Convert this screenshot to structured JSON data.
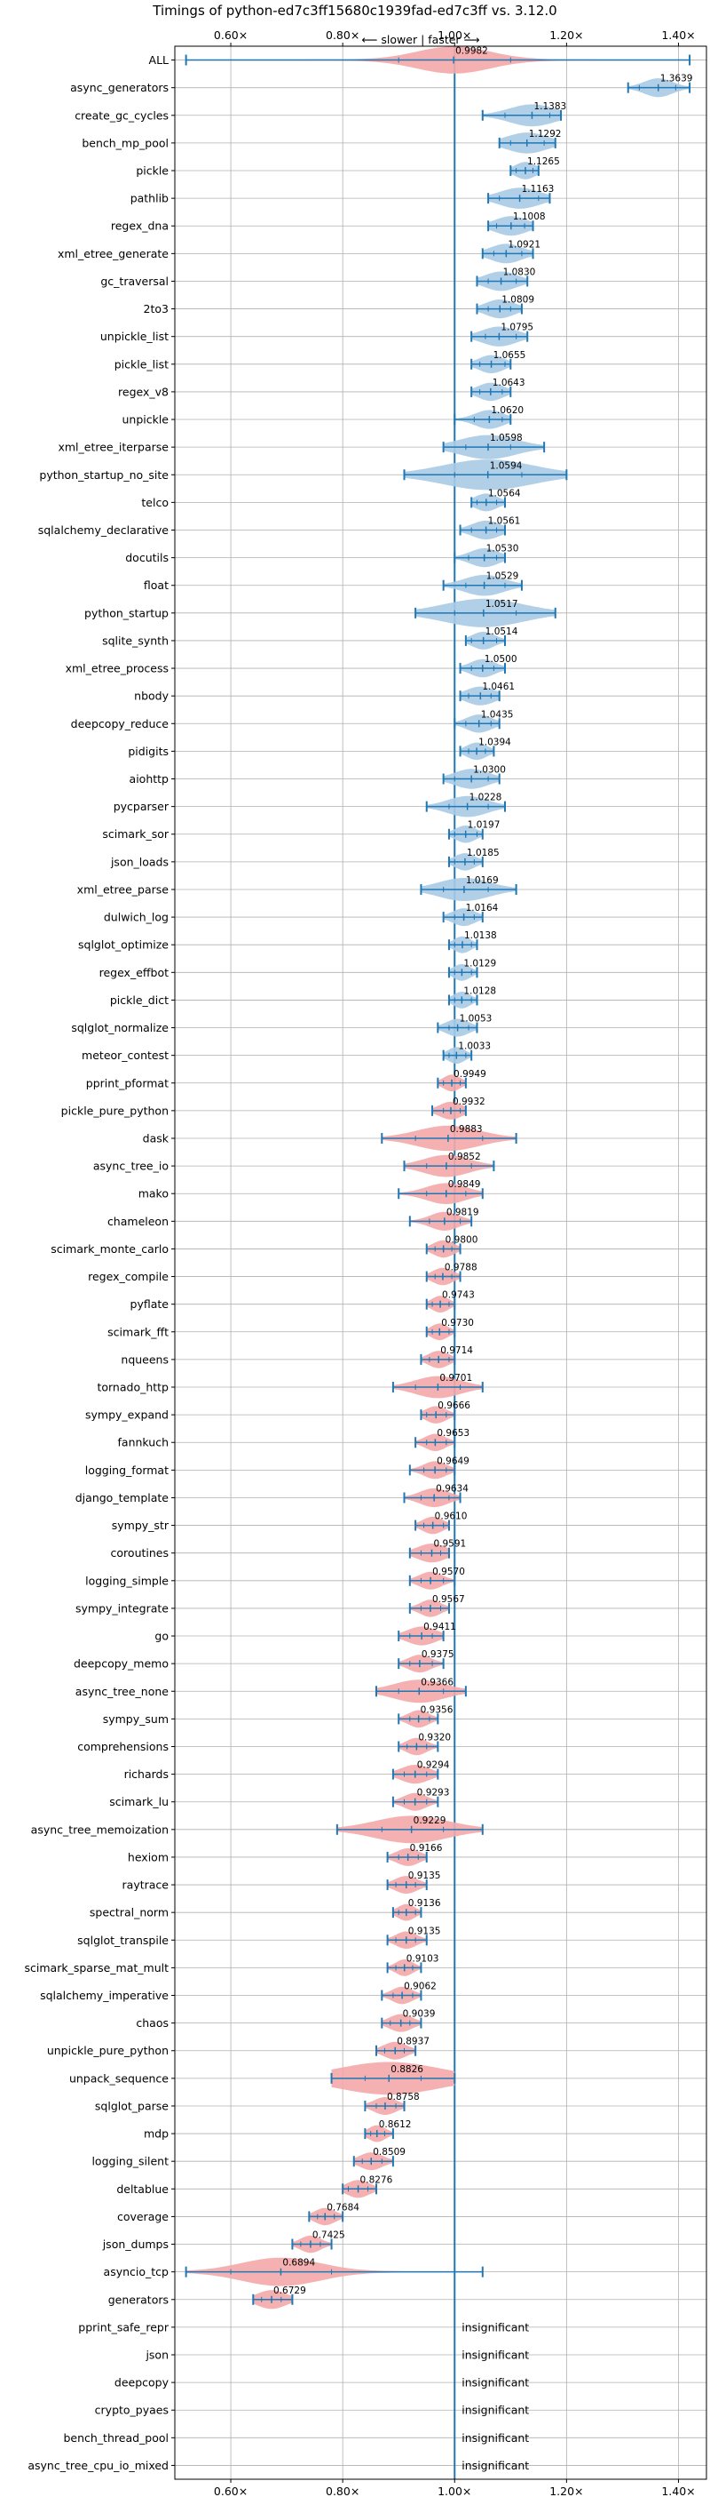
{
  "chart_data": {
    "type": "violin",
    "title": "Timings of python-ed7c3ff15680c1939fad-ed7c3ff vs. 3.12.0",
    "direction_label": "⟵ slower | faster ⟶",
    "xlim": [
      0.5,
      1.45
    ],
    "x_ticks": [
      0.6,
      0.8,
      1.0,
      1.2,
      1.4
    ],
    "x_tick_labels": [
      "0.60×",
      "0.80×",
      "1.00×",
      "1.20×",
      "1.40×"
    ],
    "reference_line": 1.0,
    "colors": {
      "faster": "#a8cbe6",
      "slower": "#f4a8a8",
      "line": "#1f77b4",
      "grid": "#b0b0b0"
    },
    "insignificant_label": "insignificant",
    "benchmarks": [
      {
        "name": "ALL",
        "mean": 0.9982,
        "lo": 0.52,
        "hi": 1.42,
        "wlo": 0.9,
        "whi": 1.1,
        "spread": 0.065,
        "sig": true
      },
      {
        "name": "async_generators",
        "mean": 1.3639,
        "lo": 1.31,
        "hi": 1.42,
        "wlo": 1.33,
        "whi": 1.395,
        "spread": 0.025,
        "sig": true
      },
      {
        "name": "create_gc_cycles",
        "mean": 1.1383,
        "lo": 1.05,
        "hi": 1.19,
        "wlo": 1.09,
        "whi": 1.17,
        "spread": 0.04,
        "sig": true
      },
      {
        "name": "bench_mp_pool",
        "mean": 1.1292,
        "lo": 1.08,
        "hi": 1.18,
        "wlo": 1.1,
        "whi": 1.16,
        "spread": 0.035,
        "sig": true
      },
      {
        "name": "pickle",
        "mean": 1.1265,
        "lo": 1.1,
        "hi": 1.15,
        "wlo": 1.11,
        "whi": 1.14,
        "spread": 0.018,
        "sig": true
      },
      {
        "name": "pathlib",
        "mean": 1.1163,
        "lo": 1.06,
        "hi": 1.17,
        "wlo": 1.08,
        "whi": 1.15,
        "spread": 0.035,
        "sig": true
      },
      {
        "name": "regex_dna",
        "mean": 1.1008,
        "lo": 1.06,
        "hi": 1.14,
        "wlo": 1.075,
        "whi": 1.125,
        "spread": 0.028,
        "sig": true
      },
      {
        "name": "xml_etree_generate",
        "mean": 1.0921,
        "lo": 1.05,
        "hi": 1.14,
        "wlo": 1.07,
        "whi": 1.12,
        "spread": 0.028,
        "sig": true
      },
      {
        "name": "gc_traversal",
        "mean": 1.083,
        "lo": 1.04,
        "hi": 1.13,
        "wlo": 1.06,
        "whi": 1.11,
        "spread": 0.028,
        "sig": true
      },
      {
        "name": "2to3",
        "mean": 1.0809,
        "lo": 1.04,
        "hi": 1.12,
        "wlo": 1.06,
        "whi": 1.1,
        "spread": 0.025,
        "sig": true
      },
      {
        "name": "unpickle_list",
        "mean": 1.0795,
        "lo": 1.03,
        "hi": 1.13,
        "wlo": 1.055,
        "whi": 1.11,
        "spread": 0.03,
        "sig": true
      },
      {
        "name": "pickle_list",
        "mean": 1.0655,
        "lo": 1.03,
        "hi": 1.1,
        "wlo": 1.045,
        "whi": 1.09,
        "spread": 0.022,
        "sig": true
      },
      {
        "name": "regex_v8",
        "mean": 1.0643,
        "lo": 1.03,
        "hi": 1.1,
        "wlo": 1.045,
        "whi": 1.085,
        "spread": 0.022,
        "sig": true
      },
      {
        "name": "unpickle",
        "mean": 1.062,
        "lo": 1.0,
        "hi": 1.1,
        "wlo": 1.035,
        "whi": 1.085,
        "spread": 0.025,
        "sig": true
      },
      {
        "name": "xml_etree_iterparse",
        "mean": 1.0598,
        "lo": 0.98,
        "hi": 1.16,
        "wlo": 1.02,
        "whi": 1.1,
        "spread": 0.05,
        "sig": true
      },
      {
        "name": "python_startup_no_site",
        "mean": 1.0594,
        "lo": 0.91,
        "hi": 1.2,
        "wlo": 1.0,
        "whi": 1.12,
        "spread": 0.08,
        "sig": true
      },
      {
        "name": "telco",
        "mean": 1.0564,
        "lo": 1.03,
        "hi": 1.09,
        "wlo": 1.04,
        "whi": 1.075,
        "spread": 0.02,
        "sig": true
      },
      {
        "name": "sqlalchemy_declarative",
        "mean": 1.0561,
        "lo": 1.01,
        "hi": 1.09,
        "wlo": 1.03,
        "whi": 1.075,
        "spread": 0.025,
        "sig": true
      },
      {
        "name": "docutils",
        "mean": 1.053,
        "lo": 1.0,
        "hi": 1.09,
        "wlo": 1.025,
        "whi": 1.075,
        "spread": 0.025,
        "sig": true
      },
      {
        "name": "float",
        "mean": 1.0529,
        "lo": 0.98,
        "hi": 1.12,
        "wlo": 1.02,
        "whi": 1.09,
        "spread": 0.035,
        "sig": true
      },
      {
        "name": "python_startup",
        "mean": 1.0517,
        "lo": 0.93,
        "hi": 1.18,
        "wlo": 1.0,
        "whi": 1.11,
        "spread": 0.07,
        "sig": true
      },
      {
        "name": "sqlite_synth",
        "mean": 1.0514,
        "lo": 1.02,
        "hi": 1.09,
        "wlo": 1.03,
        "whi": 1.075,
        "spread": 0.02,
        "sig": true
      },
      {
        "name": "xml_etree_process",
        "mean": 1.05,
        "lo": 1.01,
        "hi": 1.09,
        "wlo": 1.03,
        "whi": 1.07,
        "spread": 0.022,
        "sig": true
      },
      {
        "name": "nbody",
        "mean": 1.0461,
        "lo": 1.01,
        "hi": 1.08,
        "wlo": 1.025,
        "whi": 1.065,
        "spread": 0.025,
        "sig": true
      },
      {
        "name": "deepcopy_reduce",
        "mean": 1.0435,
        "lo": 1.0,
        "hi": 1.08,
        "wlo": 1.02,
        "whi": 1.065,
        "spread": 0.022,
        "sig": true
      },
      {
        "name": "pidigits",
        "mean": 1.0394,
        "lo": 1.01,
        "hi": 1.07,
        "wlo": 1.025,
        "whi": 1.055,
        "spread": 0.018,
        "sig": true
      },
      {
        "name": "aiohttp",
        "mean": 1.03,
        "lo": 0.98,
        "hi": 1.08,
        "wlo": 1.0,
        "whi": 1.06,
        "spread": 0.03,
        "sig": true
      },
      {
        "name": "pycparser",
        "mean": 1.0228,
        "lo": 0.95,
        "hi": 1.09,
        "wlo": 0.99,
        "whi": 1.06,
        "spread": 0.035,
        "sig": true
      },
      {
        "name": "scimark_sor",
        "mean": 1.0197,
        "lo": 0.99,
        "hi": 1.05,
        "wlo": 1.0,
        "whi": 1.04,
        "spread": 0.018,
        "sig": true
      },
      {
        "name": "json_loads",
        "mean": 1.0185,
        "lo": 0.99,
        "hi": 1.05,
        "wlo": 1.0,
        "whi": 1.035,
        "spread": 0.018,
        "sig": true
      },
      {
        "name": "xml_etree_parse",
        "mean": 1.0169,
        "lo": 0.94,
        "hi": 1.11,
        "wlo": 0.98,
        "whi": 1.06,
        "spread": 0.045,
        "sig": true
      },
      {
        "name": "dulwich_log",
        "mean": 1.0164,
        "lo": 0.98,
        "hi": 1.05,
        "wlo": 1.0,
        "whi": 1.035,
        "spread": 0.02,
        "sig": true
      },
      {
        "name": "sqlglot_optimize",
        "mean": 1.0138,
        "lo": 0.99,
        "hi": 1.04,
        "wlo": 1.0,
        "whi": 1.03,
        "spread": 0.015,
        "sig": true
      },
      {
        "name": "regex_effbot",
        "mean": 1.0129,
        "lo": 0.99,
        "hi": 1.04,
        "wlo": 1.0,
        "whi": 1.03,
        "spread": 0.015,
        "sig": true
      },
      {
        "name": "pickle_dict",
        "mean": 1.0128,
        "lo": 0.99,
        "hi": 1.04,
        "wlo": 1.0,
        "whi": 1.03,
        "spread": 0.015,
        "sig": true
      },
      {
        "name": "sqlglot_normalize",
        "mean": 1.0053,
        "lo": 0.97,
        "hi": 1.04,
        "wlo": 0.99,
        "whi": 1.025,
        "spread": 0.02,
        "sig": true
      },
      {
        "name": "meteor_contest",
        "mean": 1.0033,
        "lo": 0.98,
        "hi": 1.03,
        "wlo": 0.99,
        "whi": 1.02,
        "spread": 0.015,
        "sig": true
      },
      {
        "name": "pprint_pformat",
        "mean": 0.9949,
        "lo": 0.97,
        "hi": 1.02,
        "wlo": 0.98,
        "whi": 1.01,
        "spread": 0.015,
        "sig": true
      },
      {
        "name": "pickle_pure_python",
        "mean": 0.9932,
        "lo": 0.96,
        "hi": 1.02,
        "wlo": 0.98,
        "whi": 1.01,
        "spread": 0.02,
        "sig": true
      },
      {
        "name": "dask",
        "mean": 0.9883,
        "lo": 0.87,
        "hi": 1.11,
        "wlo": 0.93,
        "whi": 1.05,
        "spread": 0.055,
        "sig": true
      },
      {
        "name": "async_tree_io",
        "mean": 0.9852,
        "lo": 0.91,
        "hi": 1.07,
        "wlo": 0.95,
        "whi": 1.03,
        "spread": 0.04,
        "sig": true
      },
      {
        "name": "mako",
        "mean": 0.9849,
        "lo": 0.9,
        "hi": 1.05,
        "wlo": 0.95,
        "whi": 1.02,
        "spread": 0.035,
        "sig": true
      },
      {
        "name": "chameleon",
        "mean": 0.9819,
        "lo": 0.92,
        "hi": 1.03,
        "wlo": 0.955,
        "whi": 1.01,
        "spread": 0.025,
        "sig": true
      },
      {
        "name": "scimark_monte_carlo",
        "mean": 0.98,
        "lo": 0.95,
        "hi": 1.01,
        "wlo": 0.965,
        "whi": 0.995,
        "spread": 0.018,
        "sig": true
      },
      {
        "name": "regex_compile",
        "mean": 0.9788,
        "lo": 0.95,
        "hi": 1.01,
        "wlo": 0.965,
        "whi": 0.995,
        "spread": 0.018,
        "sig": true
      },
      {
        "name": "pyflate",
        "mean": 0.9743,
        "lo": 0.95,
        "hi": 1.0,
        "wlo": 0.96,
        "whi": 0.99,
        "spread": 0.015,
        "sig": true
      },
      {
        "name": "scimark_fft",
        "mean": 0.973,
        "lo": 0.95,
        "hi": 1.0,
        "wlo": 0.96,
        "whi": 0.99,
        "spread": 0.015,
        "sig": true
      },
      {
        "name": "nqueens",
        "mean": 0.9714,
        "lo": 0.94,
        "hi": 1.0,
        "wlo": 0.955,
        "whi": 0.99,
        "spread": 0.018,
        "sig": true
      },
      {
        "name": "tornado_http",
        "mean": 0.9701,
        "lo": 0.89,
        "hi": 1.05,
        "wlo": 0.93,
        "whi": 1.01,
        "spread": 0.04,
        "sig": true
      },
      {
        "name": "sympy_expand",
        "mean": 0.9666,
        "lo": 0.94,
        "hi": 1.0,
        "wlo": 0.95,
        "whi": 0.985,
        "spread": 0.018,
        "sig": true
      },
      {
        "name": "fannkuch",
        "mean": 0.9653,
        "lo": 0.93,
        "hi": 1.0,
        "wlo": 0.95,
        "whi": 0.985,
        "spread": 0.018,
        "sig": true
      },
      {
        "name": "logging_format",
        "mean": 0.9649,
        "lo": 0.92,
        "hi": 1.0,
        "wlo": 0.945,
        "whi": 0.985,
        "spread": 0.02,
        "sig": true
      },
      {
        "name": "django_template",
        "mean": 0.9634,
        "lo": 0.91,
        "hi": 1.01,
        "wlo": 0.94,
        "whi": 0.99,
        "spread": 0.025,
        "sig": true
      },
      {
        "name": "sympy_str",
        "mean": 0.961,
        "lo": 0.93,
        "hi": 0.99,
        "wlo": 0.945,
        "whi": 0.98,
        "spread": 0.018,
        "sig": true
      },
      {
        "name": "coroutines",
        "mean": 0.9591,
        "lo": 0.92,
        "hi": 0.99,
        "wlo": 0.94,
        "whi": 0.975,
        "spread": 0.025,
        "sig": true
      },
      {
        "name": "logging_simple",
        "mean": 0.957,
        "lo": 0.92,
        "hi": 1.0,
        "wlo": 0.94,
        "whi": 0.98,
        "spread": 0.02,
        "sig": true
      },
      {
        "name": "sympy_integrate",
        "mean": 0.9567,
        "lo": 0.92,
        "hi": 0.99,
        "wlo": 0.94,
        "whi": 0.975,
        "spread": 0.018,
        "sig": true
      },
      {
        "name": "go",
        "mean": 0.9411,
        "lo": 0.9,
        "hi": 0.98,
        "wlo": 0.92,
        "whi": 0.96,
        "spread": 0.025,
        "sig": true
      },
      {
        "name": "deepcopy_memo",
        "mean": 0.9375,
        "lo": 0.9,
        "hi": 0.98,
        "wlo": 0.92,
        "whi": 0.96,
        "spread": 0.02,
        "sig": true
      },
      {
        "name": "async_tree_none",
        "mean": 0.9366,
        "lo": 0.86,
        "hi": 1.02,
        "wlo": 0.9,
        "whi": 0.98,
        "spread": 0.045,
        "sig": true
      },
      {
        "name": "sympy_sum",
        "mean": 0.9356,
        "lo": 0.9,
        "hi": 0.97,
        "wlo": 0.92,
        "whi": 0.955,
        "spread": 0.018,
        "sig": true
      },
      {
        "name": "comprehensions",
        "mean": 0.932,
        "lo": 0.9,
        "hi": 0.97,
        "wlo": 0.915,
        "whi": 0.95,
        "spread": 0.018,
        "sig": true
      },
      {
        "name": "richards",
        "mean": 0.9294,
        "lo": 0.89,
        "hi": 0.97,
        "wlo": 0.91,
        "whi": 0.95,
        "spread": 0.025,
        "sig": true
      },
      {
        "name": "scimark_lu",
        "mean": 0.9293,
        "lo": 0.89,
        "hi": 0.97,
        "wlo": 0.91,
        "whi": 0.95,
        "spread": 0.02,
        "sig": true
      },
      {
        "name": "async_tree_memoization",
        "mean": 0.9229,
        "lo": 0.79,
        "hi": 1.05,
        "wlo": 0.87,
        "whi": 0.98,
        "spread": 0.065,
        "sig": true
      },
      {
        "name": "hexiom",
        "mean": 0.9166,
        "lo": 0.88,
        "hi": 0.95,
        "wlo": 0.9,
        "whi": 0.935,
        "spread": 0.02,
        "sig": true
      },
      {
        "name": "raytrace",
        "mean": 0.9135,
        "lo": 0.88,
        "hi": 0.95,
        "wlo": 0.895,
        "whi": 0.93,
        "spread": 0.02,
        "sig": true
      },
      {
        "name": "spectral_norm",
        "mean": 0.9136,
        "lo": 0.89,
        "hi": 0.94,
        "wlo": 0.9,
        "whi": 0.93,
        "spread": 0.015,
        "sig": true
      },
      {
        "name": "sqlglot_transpile",
        "mean": 0.9135,
        "lo": 0.88,
        "hi": 0.95,
        "wlo": 0.895,
        "whi": 0.93,
        "spread": 0.018,
        "sig": true
      },
      {
        "name": "scimark_sparse_mat_mult",
        "mean": 0.9103,
        "lo": 0.88,
        "hi": 0.94,
        "wlo": 0.895,
        "whi": 0.925,
        "spread": 0.015,
        "sig": true
      },
      {
        "name": "sqlalchemy_imperative",
        "mean": 0.9062,
        "lo": 0.87,
        "hi": 0.94,
        "wlo": 0.89,
        "whi": 0.925,
        "spread": 0.018,
        "sig": true
      },
      {
        "name": "chaos",
        "mean": 0.9039,
        "lo": 0.87,
        "hi": 0.94,
        "wlo": 0.885,
        "whi": 0.92,
        "spread": 0.02,
        "sig": true
      },
      {
        "name": "unpickle_pure_python",
        "mean": 0.8937,
        "lo": 0.86,
        "hi": 0.93,
        "wlo": 0.875,
        "whi": 0.91,
        "spread": 0.02,
        "sig": true
      },
      {
        "name": "unpack_sequence",
        "mean": 0.8826,
        "lo": 0.78,
        "hi": 1.0,
        "wlo": 0.84,
        "whi": 0.94,
        "spread": 0.09,
        "sig": true
      },
      {
        "name": "sqlglot_parse",
        "mean": 0.8758,
        "lo": 0.84,
        "hi": 0.91,
        "wlo": 0.86,
        "whi": 0.895,
        "spread": 0.02,
        "sig": true
      },
      {
        "name": "mdp",
        "mean": 0.8612,
        "lo": 0.84,
        "hi": 0.89,
        "wlo": 0.85,
        "whi": 0.875,
        "spread": 0.015,
        "sig": true
      },
      {
        "name": "logging_silent",
        "mean": 0.8509,
        "lo": 0.82,
        "hi": 0.89,
        "wlo": 0.835,
        "whi": 0.87,
        "spread": 0.02,
        "sig": true
      },
      {
        "name": "deltablue",
        "mean": 0.8276,
        "lo": 0.8,
        "hi": 0.86,
        "wlo": 0.81,
        "whi": 0.845,
        "spread": 0.02,
        "sig": true
      },
      {
        "name": "coverage",
        "mean": 0.7684,
        "lo": 0.74,
        "hi": 0.8,
        "wlo": 0.755,
        "whi": 0.785,
        "spread": 0.018,
        "sig": true
      },
      {
        "name": "json_dumps",
        "mean": 0.7425,
        "lo": 0.71,
        "hi": 0.78,
        "wlo": 0.725,
        "whi": 0.76,
        "spread": 0.018,
        "sig": true
      },
      {
        "name": "asyncio_tcp",
        "mean": 0.6894,
        "lo": 0.52,
        "hi": 1.05,
        "wlo": 0.6,
        "whi": 0.78,
        "spread": 0.07,
        "sig": true
      },
      {
        "name": "generators",
        "mean": 0.6729,
        "lo": 0.64,
        "hi": 0.71,
        "wlo": 0.655,
        "whi": 0.69,
        "spread": 0.025,
        "sig": true
      },
      {
        "name": "pprint_safe_repr",
        "sig": false
      },
      {
        "name": "json",
        "sig": false
      },
      {
        "name": "deepcopy",
        "sig": false
      },
      {
        "name": "crypto_pyaes",
        "sig": false
      },
      {
        "name": "bench_thread_pool",
        "sig": false
      },
      {
        "name": "async_tree_cpu_io_mixed",
        "sig": false
      }
    ]
  }
}
